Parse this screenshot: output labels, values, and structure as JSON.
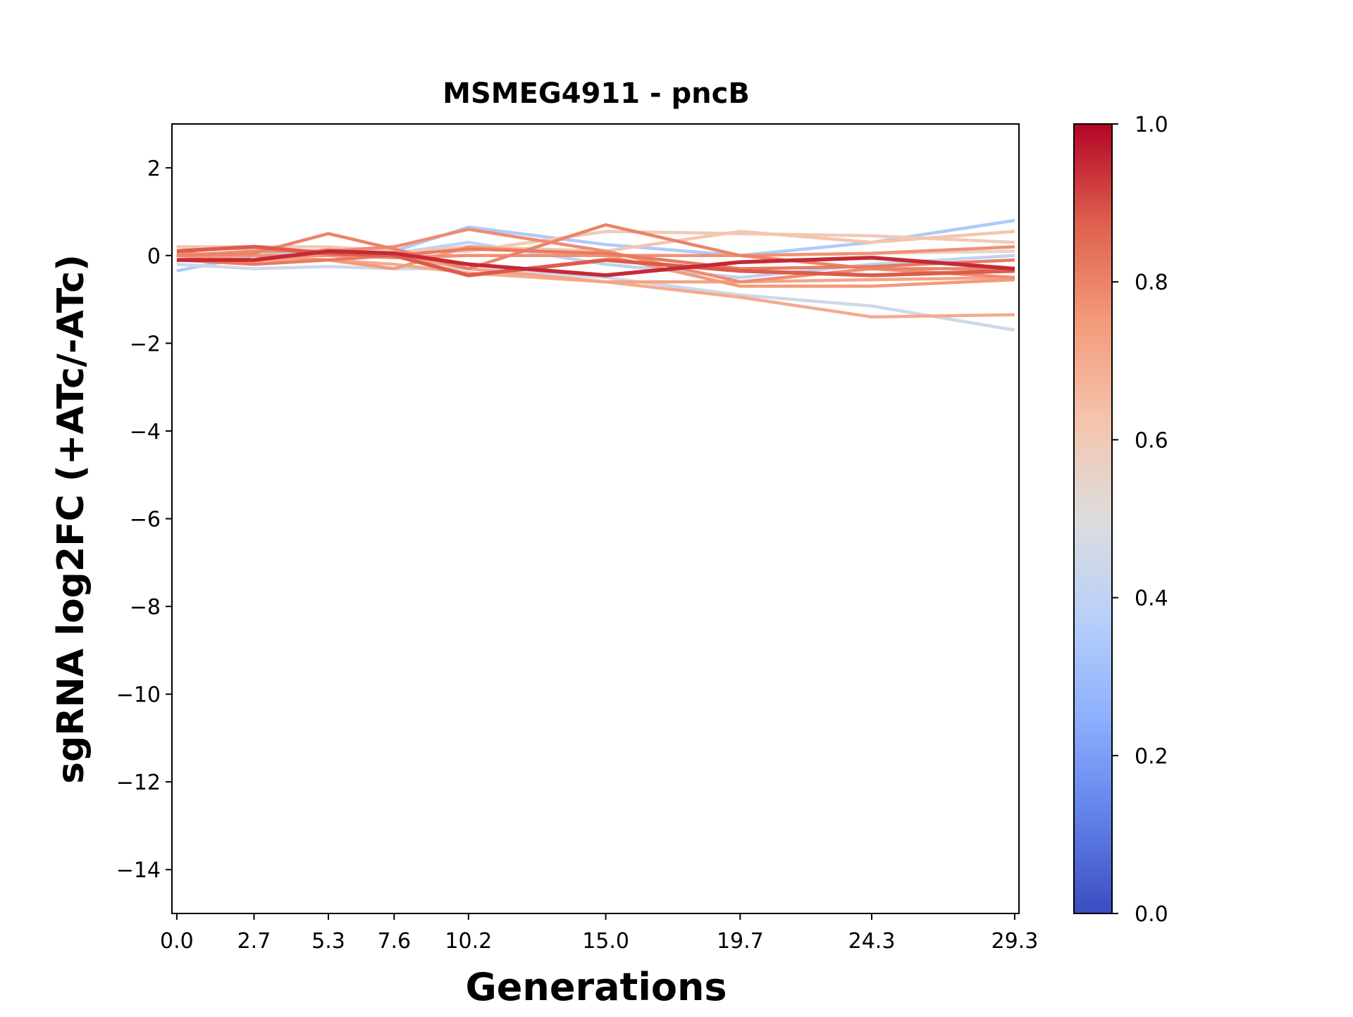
{
  "chart_data": {
    "type": "line",
    "title": "MSMEG4911 - pncB",
    "xlabel": "Generations",
    "ylabel": "sgRNA log2FC (+ATc/-ATc)",
    "xlim": [
      -0.17,
      29.45
    ],
    "ylim": [
      -15,
      3
    ],
    "x": [
      0.0,
      2.7,
      5.3,
      7.6,
      10.2,
      15.0,
      19.7,
      24.3,
      29.3
    ],
    "xtick_labels": [
      "0.0",
      "2.7",
      "5.3",
      "7.6",
      "10.2",
      "15.0",
      "19.7",
      "24.3",
      "29.3"
    ],
    "yticks": [
      2,
      0,
      -2,
      -4,
      -6,
      -8,
      -10,
      -12,
      -14
    ],
    "ytick_labels": [
      "2",
      "0",
      "−2",
      "−4",
      "−6",
      "−8",
      "−10",
      "−12",
      "−14"
    ],
    "grid": false,
    "colormap": "coolwarm",
    "colorbar": {
      "range": [
        0.0,
        1.0
      ],
      "ticks": [
        0.0,
        0.2,
        0.4,
        0.6,
        0.8,
        1.0
      ],
      "tick_labels": [
        "0.0",
        "0.2",
        "0.4",
        "0.6",
        "0.8",
        "1.0"
      ],
      "stops": [
        "#3b4cc0",
        "#6282ea",
        "#8db0fe",
        "#b8d0f9",
        "#dddddd",
        "#f5c4ad",
        "#f49a7b",
        "#de604d",
        "#b40426"
      ]
    },
    "series": [
      {
        "color_value": 0.35,
        "values": [
          -0.35,
          0.0,
          0.05,
          0.1,
          0.65,
          0.25,
          0.0,
          0.3,
          0.8
        ]
      },
      {
        "color_value": 0.45,
        "values": [
          -0.2,
          -0.3,
          -0.25,
          -0.3,
          -0.3,
          -0.5,
          -0.9,
          -1.15,
          -1.7
        ]
      },
      {
        "color_value": 0.4,
        "values": [
          0.0,
          0.1,
          0.0,
          0.05,
          0.3,
          -0.2,
          -0.5,
          -0.2,
          0.0
        ]
      },
      {
        "color_value": 0.55,
        "values": [
          0.0,
          0.0,
          0.0,
          0.0,
          0.0,
          0.0,
          0.0,
          0.05,
          0.1
        ]
      },
      {
        "color_value": 0.6,
        "values": [
          0.2,
          0.2,
          0.2,
          0.1,
          0.1,
          0.55,
          0.5,
          0.45,
          0.3
        ]
      },
      {
        "color_value": 0.62,
        "values": [
          0.2,
          0.15,
          0.1,
          0.05,
          0.2,
          0.1,
          0.55,
          0.3,
          0.55
        ]
      },
      {
        "color_value": 0.7,
        "values": [
          0.0,
          -0.1,
          -0.1,
          -0.2,
          -0.4,
          -0.6,
          -0.95,
          -1.4,
          -1.35
        ]
      },
      {
        "color_value": 0.72,
        "values": [
          0.0,
          -0.15,
          0.15,
          0.0,
          -0.3,
          -0.6,
          -0.6,
          -0.55,
          -0.5
        ]
      },
      {
        "color_value": 0.75,
        "values": [
          0.0,
          0.0,
          -0.1,
          -0.3,
          0.2,
          0.0,
          -0.7,
          -0.7,
          -0.55
        ]
      },
      {
        "color_value": 0.77,
        "values": [
          0.05,
          0.0,
          0.0,
          -0.05,
          0.0,
          0.0,
          0.0,
          0.05,
          0.2
        ]
      },
      {
        "color_value": 0.78,
        "values": [
          0.0,
          0.1,
          0.1,
          0.2,
          0.6,
          0.1,
          -0.6,
          -0.3,
          -0.5
        ]
      },
      {
        "color_value": 0.8,
        "values": [
          0.0,
          0.05,
          0.5,
          0.15,
          -0.3,
          0.7,
          0.0,
          -0.3,
          -0.3
        ]
      },
      {
        "color_value": 0.82,
        "values": [
          -0.1,
          -0.2,
          -0.1,
          0.0,
          0.15,
          0.05,
          -0.3,
          -0.25,
          -0.1
        ]
      },
      {
        "color_value": 0.88,
        "values": [
          0.1,
          0.2,
          0.05,
          0.0,
          -0.45,
          -0.1,
          -0.35,
          -0.45,
          -0.35
        ]
      },
      {
        "color_value": 0.95,
        "values": [
          -0.1,
          -0.1,
          0.1,
          0.05,
          -0.2,
          -0.45,
          -0.15,
          -0.05,
          -0.3
        ]
      }
    ]
  }
}
